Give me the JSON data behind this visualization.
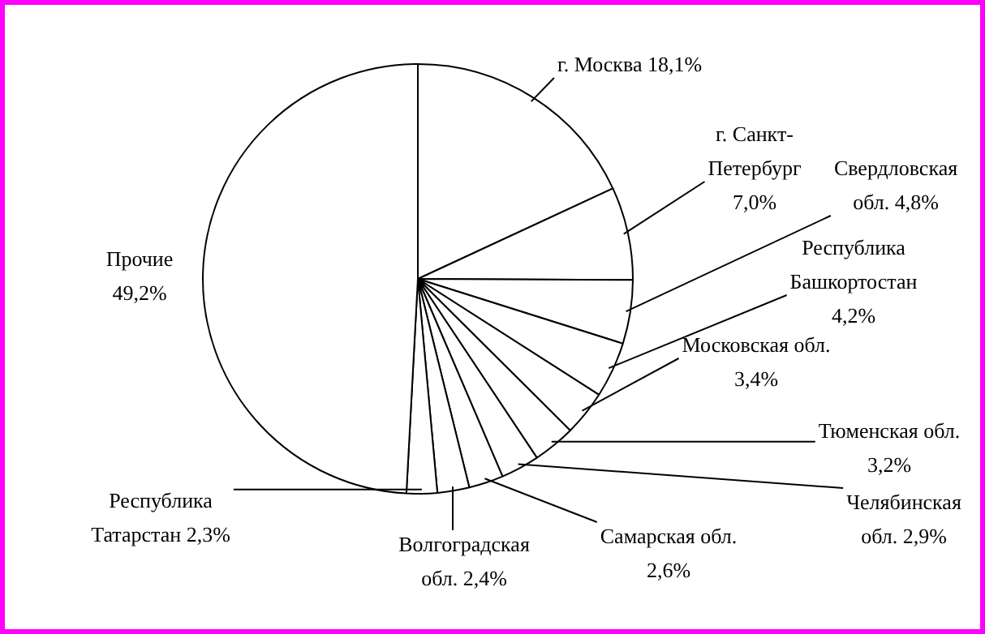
{
  "chart_data": {
    "type": "pie",
    "categories": [
      "г. Москва",
      "г. Санкт-Петербург",
      "Свердловская обл.",
      "Республика Башкортостан",
      "Московская обл.",
      "Тюменская обл.",
      "Челябинская обл.",
      "Самарская обл.",
      "Волгоградская обл.",
      "Республика Татарстан",
      "Прочие"
    ],
    "values": [
      18.1,
      7.0,
      4.8,
      4.2,
      3.4,
      3.2,
      2.9,
      2.6,
      2.4,
      2.3,
      49.2
    ],
    "value_labels": [
      "18,1%",
      "7,0%",
      "4,8%",
      "4,2%",
      "3,4%",
      "3,2%",
      "2,9%",
      "2,6%",
      "2,4%",
      "2,3%",
      "49,2%"
    ],
    "colors": [
      "#ffffff",
      "#ffffff",
      "#ffffff",
      "#ffffff",
      "#ffffff",
      "#ffffff",
      "#ffffff",
      "#ffffff",
      "#ffffff",
      "#ffffff",
      "#ffffff"
    ],
    "legend": false
  }
}
